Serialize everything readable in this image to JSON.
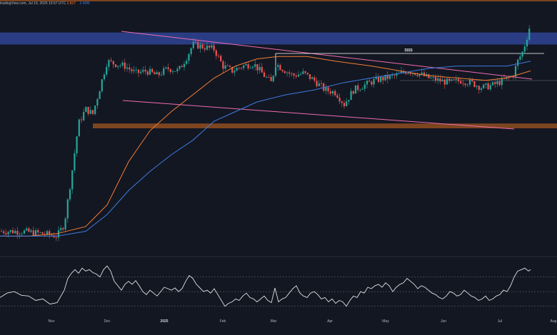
{
  "header": {
    "source": "tradingView.com, Jul 19, 2025 10:57 UTC",
    "ma1_label": "2.81T",
    "ma2_label": "2.40M"
  },
  "colors": {
    "background": "#131722",
    "up": "#26a69a",
    "down": "#ef5350",
    "ma_fast": "#f57c33",
    "ma_slow": "#3d7be0",
    "supply_zone": "#2b3f8a",
    "demand_zone": "#8a4a1f",
    "trendline": "#f06bb0",
    "rsi": "#e0e0e0"
  },
  "chart_data": {
    "type": "candlestick",
    "x_ticks": [
      "Nov",
      "Dec",
      "2025",
      "Feb",
      "Mar",
      "Apr",
      "May",
      "Jun",
      "Jul",
      "Aug"
    ],
    "zones": [
      {
        "kind": "demand",
        "low": 1.03,
        "high": 1.05
      },
      {
        "kind": "supply",
        "low": 0.85,
        "high": 0.9
      },
      {
        "kind": "demand",
        "low": 0.5,
        "high": 0.52
      }
    ],
    "annotation": {
      "label": "$$$$"
    },
    "ma_fast": [
      [
        0,
        0.05
      ],
      [
        40,
        0.05
      ],
      [
        80,
        0.06
      ],
      [
        120,
        0.09
      ],
      [
        150,
        0.18
      ],
      [
        180,
        0.36
      ],
      [
        210,
        0.49
      ],
      [
        240,
        0.57
      ],
      [
        270,
        0.64
      ],
      [
        300,
        0.71
      ],
      [
        330,
        0.76
      ],
      [
        360,
        0.79
      ],
      [
        390,
        0.8
      ],
      [
        430,
        0.8
      ],
      [
        470,
        0.78
      ],
      [
        520,
        0.76
      ],
      [
        560,
        0.74
      ],
      [
        600,
        0.72
      ],
      [
        640,
        0.71
      ],
      [
        680,
        0.7
      ],
      [
        710,
        0.71
      ],
      [
        743,
        0.74
      ]
    ],
    "ma_slow": [
      [
        0,
        0.05
      ],
      [
        40,
        0.05
      ],
      [
        80,
        0.05
      ],
      [
        120,
        0.07
      ],
      [
        150,
        0.14
      ],
      [
        180,
        0.24
      ],
      [
        210,
        0.32
      ],
      [
        240,
        0.39
      ],
      [
        270,
        0.45
      ],
      [
        300,
        0.53
      ],
      [
        330,
        0.57
      ],
      [
        360,
        0.61
      ],
      [
        400,
        0.64
      ],
      [
        440,
        0.66
      ],
      [
        480,
        0.69
      ],
      [
        520,
        0.71
      ],
      [
        560,
        0.73
      ],
      [
        600,
        0.75
      ],
      [
        640,
        0.76
      ],
      [
        680,
        0.76
      ],
      [
        710,
        0.76
      ],
      [
        743,
        0.78
      ]
    ],
    "rsi_ref_levels": [
      70,
      50,
      30
    ],
    "rsi": [
      [
        0,
        42
      ],
      [
        10,
        48
      ],
      [
        20,
        50
      ],
      [
        30,
        45
      ],
      [
        40,
        44
      ],
      [
        50,
        38
      ],
      [
        60,
        40
      ],
      [
        70,
        33
      ],
      [
        80,
        35
      ],
      [
        90,
        52
      ],
      [
        95,
        68
      ],
      [
        100,
        75
      ],
      [
        105,
        80
      ],
      [
        110,
        75
      ],
      [
        115,
        82
      ],
      [
        120,
        78
      ],
      [
        125,
        80
      ],
      [
        130,
        76
      ],
      [
        135,
        74
      ],
      [
        140,
        70
      ],
      [
        145,
        80
      ],
      [
        150,
        85
      ],
      [
        155,
        78
      ],
      [
        160,
        64
      ],
      [
        165,
        58
      ],
      [
        170,
        52
      ],
      [
        175,
        60
      ],
      [
        180,
        64
      ],
      [
        185,
        60
      ],
      [
        190,
        65
      ],
      [
        195,
        58
      ],
      [
        200,
        50
      ],
      [
        205,
        46
      ],
      [
        210,
        52
      ],
      [
        215,
        48
      ],
      [
        220,
        44
      ],
      [
        225,
        50
      ],
      [
        230,
        56
      ],
      [
        235,
        54
      ],
      [
        240,
        52
      ],
      [
        245,
        55
      ],
      [
        250,
        50
      ],
      [
        255,
        54
      ],
      [
        260,
        64
      ],
      [
        265,
        72
      ],
      [
        270,
        68
      ],
      [
        275,
        60
      ],
      [
        280,
        55
      ],
      [
        285,
        50
      ],
      [
        290,
        52
      ],
      [
        295,
        48
      ],
      [
        300,
        54
      ],
      [
        305,
        46
      ],
      [
        310,
        38
      ],
      [
        315,
        30
      ],
      [
        320,
        34
      ],
      [
        325,
        36
      ],
      [
        330,
        40
      ],
      [
        335,
        38
      ],
      [
        340,
        44
      ],
      [
        345,
        48
      ],
      [
        350,
        42
      ],
      [
        355,
        40
      ],
      [
        360,
        36
      ],
      [
        365,
        40
      ],
      [
        370,
        44
      ],
      [
        375,
        38
      ],
      [
        380,
        35
      ],
      [
        385,
        55
      ],
      [
        390,
        36
      ],
      [
        395,
        40
      ],
      [
        400,
        42
      ],
      [
        405,
        48
      ],
      [
        410,
        54
      ],
      [
        415,
        58
      ],
      [
        420,
        48
      ],
      [
        425,
        44
      ],
      [
        430,
        42
      ],
      [
        435,
        48
      ],
      [
        440,
        50
      ],
      [
        445,
        46
      ],
      [
        450,
        40
      ],
      [
        455,
        42
      ],
      [
        460,
        36
      ],
      [
        465,
        40
      ],
      [
        470,
        34
      ],
      [
        475,
        38
      ],
      [
        480,
        36
      ],
      [
        485,
        30
      ],
      [
        490,
        38
      ],
      [
        495,
        44
      ],
      [
        500,
        42
      ],
      [
        505,
        50
      ],
      [
        510,
        48
      ],
      [
        515,
        56
      ],
      [
        520,
        54
      ],
      [
        525,
        58
      ],
      [
        530,
        60
      ],
      [
        535,
        56
      ],
      [
        540,
        62
      ],
      [
        545,
        58
      ],
      [
        550,
        50
      ],
      [
        555,
        56
      ],
      [
        560,
        60
      ],
      [
        565,
        62
      ],
      [
        570,
        68
      ],
      [
        575,
        64
      ],
      [
        580,
        60
      ],
      [
        585,
        54
      ],
      [
        590,
        58
      ],
      [
        595,
        56
      ],
      [
        600,
        52
      ],
      [
        605,
        48
      ],
      [
        610,
        46
      ],
      [
        615,
        42
      ],
      [
        620,
        40
      ],
      [
        625,
        44
      ],
      [
        630,
        50
      ],
      [
        635,
        48
      ],
      [
        640,
        44
      ],
      [
        645,
        46
      ],
      [
        650,
        52
      ],
      [
        655,
        48
      ],
      [
        660,
        44
      ],
      [
        665,
        42
      ],
      [
        670,
        38
      ],
      [
        675,
        40
      ],
      [
        680,
        44
      ],
      [
        685,
        38
      ],
      [
        690,
        40
      ],
      [
        695,
        44
      ],
      [
        700,
        46
      ],
      [
        705,
        52
      ],
      [
        710,
        50
      ],
      [
        715,
        58
      ],
      [
        720,
        70
      ],
      [
        725,
        78
      ],
      [
        730,
        80
      ],
      [
        735,
        82
      ],
      [
        740,
        78
      ],
      [
        743,
        80
      ]
    ]
  }
}
